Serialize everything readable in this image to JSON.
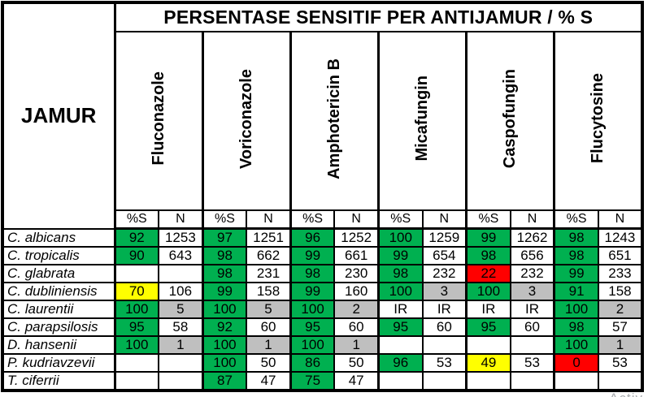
{
  "colors": {
    "green": "#00B050",
    "yellow": "#FFFF00",
    "red": "#FF0000",
    "gray": "#BFBFBF",
    "white": "#FFFFFF",
    "border": "#000000"
  },
  "watermark_fragment": "Activ",
  "chart_data": {
    "type": "table",
    "title": "PERSENTASE SENSITIF PER ANTIJAMUR / % S",
    "row_axis_label": "JAMUR",
    "column_groups": [
      "Fluconazole",
      "Voriconazole",
      "Amphotericin B",
      "Micafungin",
      "Caspofungin",
      "Flucytosine"
    ],
    "sub_columns": [
      "%S",
      "N"
    ],
    "rows": [
      {
        "name": "C. albicans",
        "cells": [
          {
            "v": "92",
            "bg": "green"
          },
          {
            "v": "1253",
            "bg": "white"
          },
          {
            "v": "97",
            "bg": "green"
          },
          {
            "v": "1251",
            "bg": "white"
          },
          {
            "v": "96",
            "bg": "green"
          },
          {
            "v": "1252",
            "bg": "white"
          },
          {
            "v": "100",
            "bg": "green"
          },
          {
            "v": "1259",
            "bg": "white"
          },
          {
            "v": "99",
            "bg": "green"
          },
          {
            "v": "1262",
            "bg": "white"
          },
          {
            "v": "98",
            "bg": "green"
          },
          {
            "v": "1243",
            "bg": "white"
          }
        ]
      },
      {
        "name": "C. tropicalis",
        "cells": [
          {
            "v": "90",
            "bg": "green"
          },
          {
            "v": "643",
            "bg": "white"
          },
          {
            "v": "98",
            "bg": "green"
          },
          {
            "v": "662",
            "bg": "white"
          },
          {
            "v": "99",
            "bg": "green"
          },
          {
            "v": "661",
            "bg": "white"
          },
          {
            "v": "99",
            "bg": "green"
          },
          {
            "v": "654",
            "bg": "white"
          },
          {
            "v": "98",
            "bg": "green"
          },
          {
            "v": "656",
            "bg": "white"
          },
          {
            "v": "98",
            "bg": "green"
          },
          {
            "v": "651",
            "bg": "white"
          }
        ]
      },
      {
        "name": "C. glabrata",
        "cells": [
          {
            "v": "",
            "bg": "white"
          },
          {
            "v": "",
            "bg": "white"
          },
          {
            "v": "98",
            "bg": "green"
          },
          {
            "v": "231",
            "bg": "white"
          },
          {
            "v": "98",
            "bg": "green"
          },
          {
            "v": "230",
            "bg": "white"
          },
          {
            "v": "98",
            "bg": "green"
          },
          {
            "v": "232",
            "bg": "white"
          },
          {
            "v": "22",
            "bg": "red"
          },
          {
            "v": "232",
            "bg": "white"
          },
          {
            "v": "99",
            "bg": "green"
          },
          {
            "v": "233",
            "bg": "white"
          }
        ]
      },
      {
        "name": "C. dubliniensis",
        "cells": [
          {
            "v": "70",
            "bg": "yellow"
          },
          {
            "v": "106",
            "bg": "white"
          },
          {
            "v": "99",
            "bg": "green"
          },
          {
            "v": "158",
            "bg": "white"
          },
          {
            "v": "99",
            "bg": "green"
          },
          {
            "v": "160",
            "bg": "white"
          },
          {
            "v": "100",
            "bg": "green"
          },
          {
            "v": "3",
            "bg": "gray"
          },
          {
            "v": "100",
            "bg": "green"
          },
          {
            "v": "3",
            "bg": "gray"
          },
          {
            "v": "91",
            "bg": "green"
          },
          {
            "v": "158",
            "bg": "white"
          }
        ]
      },
      {
        "name": "C. laurentii",
        "cells": [
          {
            "v": "100",
            "bg": "green"
          },
          {
            "v": "5",
            "bg": "gray"
          },
          {
            "v": "100",
            "bg": "green"
          },
          {
            "v": "5",
            "bg": "gray"
          },
          {
            "v": "100",
            "bg": "green"
          },
          {
            "v": "2",
            "bg": "gray"
          },
          {
            "v": "IR",
            "bg": "white"
          },
          {
            "v": "IR",
            "bg": "white"
          },
          {
            "v": "IR",
            "bg": "white"
          },
          {
            "v": "IR",
            "bg": "white"
          },
          {
            "v": "100",
            "bg": "green"
          },
          {
            "v": "2",
            "bg": "gray"
          }
        ]
      },
      {
        "name": "C. parapsilosis",
        "cells": [
          {
            "v": "95",
            "bg": "green"
          },
          {
            "v": "58",
            "bg": "white"
          },
          {
            "v": "92",
            "bg": "green"
          },
          {
            "v": "60",
            "bg": "white"
          },
          {
            "v": "95",
            "bg": "green"
          },
          {
            "v": "60",
            "bg": "white"
          },
          {
            "v": "95",
            "bg": "green"
          },
          {
            "v": "60",
            "bg": "white"
          },
          {
            "v": "95",
            "bg": "green"
          },
          {
            "v": "60",
            "bg": "white"
          },
          {
            "v": "98",
            "bg": "green"
          },
          {
            "v": "57",
            "bg": "white"
          }
        ]
      },
      {
        "name": "D. hansenii",
        "cells": [
          {
            "v": "100",
            "bg": "green"
          },
          {
            "v": "1",
            "bg": "gray"
          },
          {
            "v": "100",
            "bg": "green"
          },
          {
            "v": "1",
            "bg": "gray"
          },
          {
            "v": "100",
            "bg": "green"
          },
          {
            "v": "1",
            "bg": "gray"
          },
          {
            "v": "",
            "bg": "white"
          },
          {
            "v": "",
            "bg": "white"
          },
          {
            "v": "",
            "bg": "white"
          },
          {
            "v": "",
            "bg": "white"
          },
          {
            "v": "100",
            "bg": "green"
          },
          {
            "v": "1",
            "bg": "gray"
          }
        ]
      },
      {
        "name": "P. kudriavzevii",
        "cells": [
          {
            "v": "",
            "bg": "white"
          },
          {
            "v": "",
            "bg": "white"
          },
          {
            "v": "100",
            "bg": "green"
          },
          {
            "v": "50",
            "bg": "white"
          },
          {
            "v": "86",
            "bg": "green"
          },
          {
            "v": "50",
            "bg": "white"
          },
          {
            "v": "96",
            "bg": "green"
          },
          {
            "v": "53",
            "bg": "white"
          },
          {
            "v": "49",
            "bg": "yellow"
          },
          {
            "v": "53",
            "bg": "white"
          },
          {
            "v": "0",
            "bg": "red"
          },
          {
            "v": "53",
            "bg": "white"
          }
        ]
      },
      {
        "name": "T. ciferrii",
        "cells": [
          {
            "v": "",
            "bg": "white"
          },
          {
            "v": "",
            "bg": "white"
          },
          {
            "v": "87",
            "bg": "green"
          },
          {
            "v": "47",
            "bg": "white"
          },
          {
            "v": "75",
            "bg": "green"
          },
          {
            "v": "47",
            "bg": "white"
          },
          {
            "v": "",
            "bg": "white"
          },
          {
            "v": "",
            "bg": "white"
          },
          {
            "v": "",
            "bg": "white"
          },
          {
            "v": "",
            "bg": "white"
          },
          {
            "v": "",
            "bg": "white"
          },
          {
            "v": "",
            "bg": "white"
          }
        ]
      }
    ]
  }
}
